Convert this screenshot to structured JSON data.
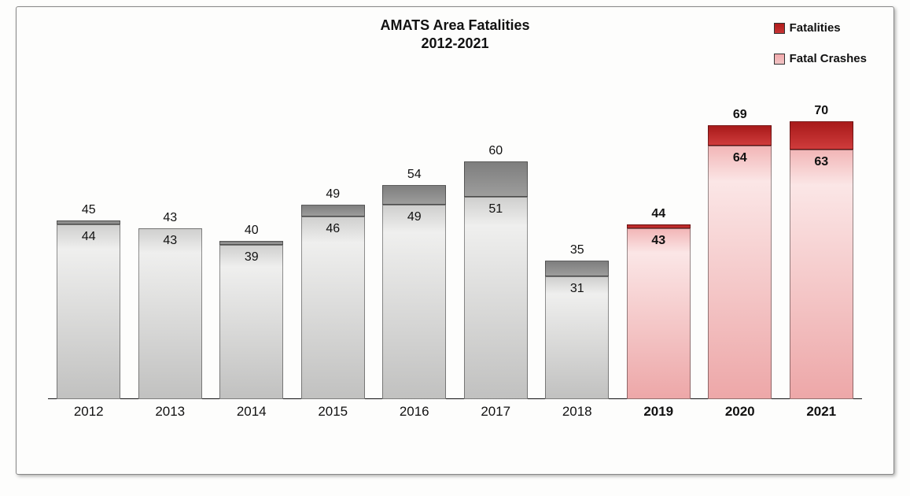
{
  "chart": {
    "type": "stacked-bar",
    "title_line1": "AMATS Area Fatalities",
    "title_line2": "2012-2021",
    "title_fontsize": 18,
    "background_color": "#fdfdfc",
    "frame_border_color": "#888888",
    "y_max": 80,
    "y_min": 0,
    "bar_width_ratio": 0.78,
    "data_label_fontsize": 16,
    "x_label_fontsize": 17,
    "legend": {
      "fontsize": 15,
      "items": [
        {
          "label": "Fatalities",
          "swatch_top": "#b01b1b",
          "swatch_bottom": "#c63434"
        },
        {
          "label": "Fatal Crashes",
          "swatch_top": "#f3a9ab",
          "swatch_bottom": "#f0c3c4"
        }
      ]
    },
    "series_names": [
      "Fatal Crashes",
      "Fatalities"
    ],
    "color_scheme_gray": {
      "lower_top_color": "#cfcfce",
      "lower_mid_color": "#efefee",
      "lower_bot_color": "#c1c1c0",
      "upper_top_color": "#7e7e7e",
      "upper_bot_color": "#9d9d9c"
    },
    "color_scheme_red": {
      "lower_top_color": "#f2b6b7",
      "lower_mid_color": "#fbe6e6",
      "lower_bot_color": "#eda7a8",
      "upper_top_color": "#a81a1a",
      "upper_bot_color": "#cf3b3b"
    },
    "points": [
      {
        "year": "2012",
        "crashes": 44,
        "fatalities": 45,
        "scheme": "gray",
        "bold": false
      },
      {
        "year": "2013",
        "crashes": 43,
        "fatalities": 43,
        "scheme": "gray",
        "bold": false
      },
      {
        "year": "2014",
        "crashes": 39,
        "fatalities": 40,
        "scheme": "gray",
        "bold": false
      },
      {
        "year": "2015",
        "crashes": 46,
        "fatalities": 49,
        "scheme": "gray",
        "bold": false
      },
      {
        "year": "2016",
        "crashes": 49,
        "fatalities": 54,
        "scheme": "gray",
        "bold": false
      },
      {
        "year": "2017",
        "crashes": 51,
        "fatalities": 60,
        "scheme": "gray",
        "bold": false
      },
      {
        "year": "2018",
        "crashes": 31,
        "fatalities": 35,
        "scheme": "gray",
        "bold": false
      },
      {
        "year": "2019",
        "crashes": 43,
        "fatalities": 44,
        "scheme": "red",
        "bold": true
      },
      {
        "year": "2020",
        "crashes": 64,
        "fatalities": 69,
        "scheme": "red",
        "bold": true
      },
      {
        "year": "2021",
        "crashes": 63,
        "fatalities": 70,
        "scheme": "red",
        "bold": true
      }
    ]
  }
}
